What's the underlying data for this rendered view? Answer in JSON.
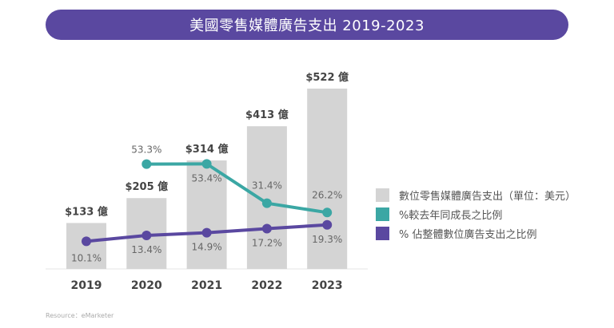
{
  "title": "美國零售媒體廣告支出 2019-2023",
  "source": "Resource：eMarketer",
  "chart_data": {
    "type": "bar+line",
    "title": "美國零售媒體廣告支出 2019-2023",
    "categories": [
      "2019",
      "2020",
      "2021",
      "2022",
      "2023"
    ],
    "bars": {
      "name": "數位零售媒體廣告支出（單位：美元）",
      "values": [
        133,
        205,
        314,
        413,
        522
      ],
      "labels": [
        "$133 億",
        "$205 億",
        "$314 億",
        "$413 億",
        "$522 億"
      ],
      "unit": "億美元",
      "color": "#d4d4d4"
    },
    "series": [
      {
        "name": "%較去年同成長之比例",
        "values": [
          null,
          53.3,
          53.4,
          31.4,
          26.2
        ],
        "labels": [
          "",
          "53.3%",
          "53.4%",
          "31.4%",
          "26.2%"
        ],
        "color": "#3ba7a4"
      },
      {
        "name": "% 佔整體數位廣告支出之比例",
        "values": [
          10.1,
          13.4,
          14.9,
          17.2,
          19.3
        ],
        "labels": [
          "10.1%",
          "13.4%",
          "14.9%",
          "17.2%",
          "19.3%"
        ],
        "color": "#5a48a0"
      }
    ],
    "legend_position": "right",
    "grid": false
  }
}
